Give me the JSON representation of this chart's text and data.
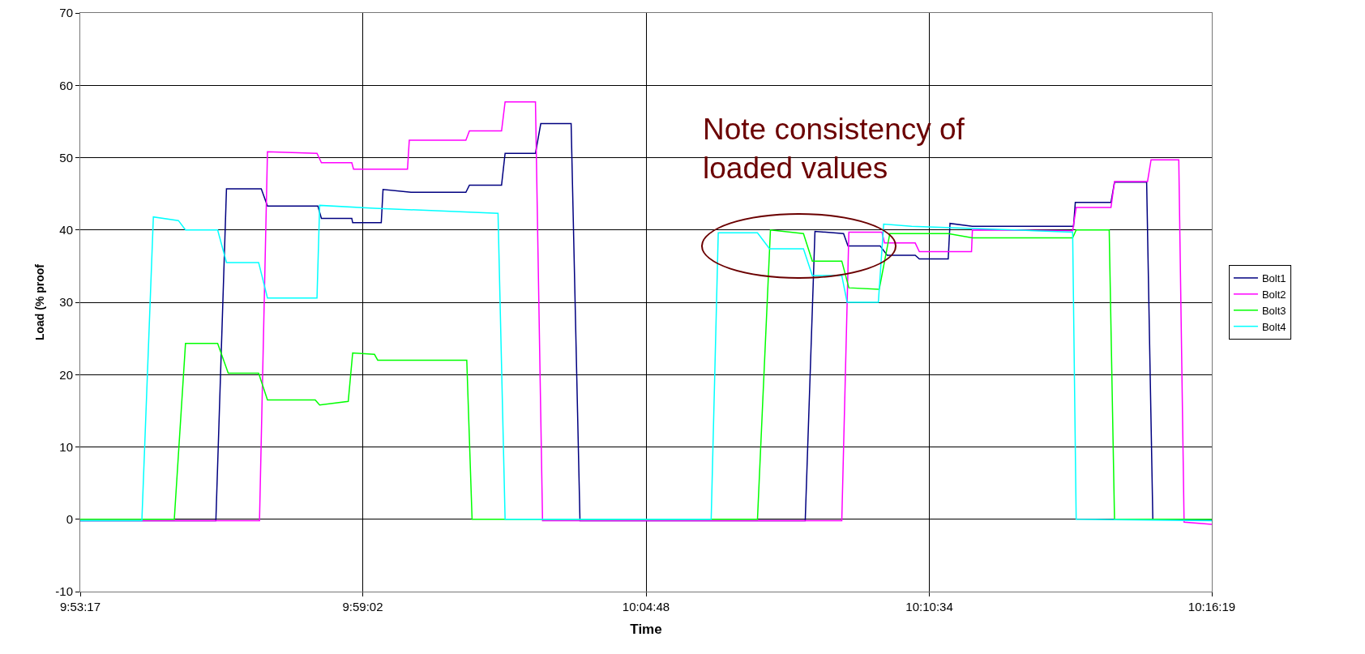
{
  "chart_data": {
    "type": "line",
    "xlabel": "Time",
    "ylabel": "Load (% proof",
    "annotations": [
      "Note consistency of loaded values"
    ],
    "xlim": [
      9.8881,
      10.2719
    ],
    "xticks": [
      {
        "value": 9.8881,
        "label": "9:53:17"
      },
      {
        "value": 9.9839,
        "label": "9:59:02"
      },
      {
        "value": 10.08,
        "label": "10:04:48"
      },
      {
        "value": 10.1761,
        "label": "10:10:34"
      },
      {
        "value": 10.2719,
        "label": "10:16:19"
      }
    ],
    "ylim": [
      -10,
      70
    ],
    "yticks": [
      -10,
      0,
      10,
      20,
      30,
      40,
      50,
      60,
      70
    ],
    "grid": true,
    "legend": "right",
    "marker": "none",
    "line_style": "solid",
    "series": [
      {
        "name": "Bolt1",
        "color": "#000080",
        "x": [
          9.8881,
          9.9341,
          9.9377,
          9.9495,
          9.9516,
          9.9687,
          9.9699,
          9.9802,
          9.9805,
          9.9902,
          9.9908,
          10.0003,
          10.0189,
          10.0201,
          10.031,
          10.0322,
          10.0425,
          10.0443,
          10.0546,
          10.0576,
          10.134,
          10.1373,
          10.147,
          10.1485,
          10.1594,
          10.1618,
          10.1713,
          10.1727,
          10.1825,
          10.1831,
          10.1907,
          10.225,
          10.2256,
          10.2377,
          10.2389,
          10.2498,
          10.2519,
          10.2719
        ],
        "values": [
          -0.2,
          -0.2,
          45.7,
          45.7,
          43.3,
          43.3,
          41.6,
          41.6,
          41,
          41,
          45.6,
          45.2,
          45.2,
          46.2,
          46.2,
          50.6,
          50.6,
          54.7,
          54.7,
          -0.2,
          -0.2,
          39.8,
          39.5,
          37.8,
          37.8,
          36.5,
          36.5,
          36,
          36,
          40.9,
          40.5,
          40.5,
          43.8,
          43.8,
          46.6,
          46.6,
          0,
          -0.1
        ]
      },
      {
        "name": "Bolt2",
        "color": "#ff00ff",
        "x": [
          9.8881,
          9.9489,
          9.9516,
          9.9684,
          9.9699,
          9.9802,
          9.9808,
          9.9991,
          9.9997,
          10.0189,
          10.0201,
          10.031,
          10.0322,
          10.0425,
          10.0449,
          10.1464,
          10.1488,
          10.16,
          10.1609,
          10.1713,
          10.1727,
          10.1904,
          10.1907,
          10.2247,
          10.2259,
          10.2377,
          10.2389,
          10.2501,
          10.2513,
          10.2607,
          10.2625,
          10.2719
        ],
        "values": [
          -0.2,
          -0.2,
          50.8,
          50.6,
          49.3,
          49.3,
          48.4,
          48.4,
          52.4,
          52.4,
          53.7,
          53.7,
          57.7,
          57.7,
          -0.2,
          -0.2,
          39.7,
          39.7,
          38.2,
          38.2,
          37,
          37,
          40,
          39.9,
          43.1,
          43.1,
          46.7,
          46.7,
          49.7,
          49.7,
          -0.4,
          -0.7
        ]
      },
      {
        "name": "Bolt3",
        "color": "#00ff00",
        "x": [
          9.8881,
          9.92,
          9.9238,
          9.9347,
          9.9383,
          9.9486,
          9.9516,
          9.9678,
          9.9693,
          9.979,
          9.9805,
          9.9879,
          9.989,
          10.0192,
          10.021,
          10.1178,
          10.1222,
          10.1334,
          10.1364,
          10.1464,
          10.1488,
          10.1591,
          10.1627,
          10.1825,
          10.1907,
          10.2247,
          10.2259,
          10.2371,
          10.2389,
          10.2719
        ],
        "values": [
          0,
          0,
          24.3,
          24.3,
          20.2,
          20.2,
          16.5,
          16.5,
          15.8,
          16.3,
          23,
          22.8,
          22,
          22,
          0,
          0,
          40,
          39.5,
          35.7,
          35.7,
          32,
          31.8,
          39.5,
          39.5,
          38.9,
          38.9,
          40,
          40,
          0,
          0
        ]
      },
      {
        "name": "Bolt4",
        "color": "#00ffff",
        "x": [
          9.8881,
          9.909,
          9.9129,
          9.9214,
          9.9238,
          9.9347,
          9.9377,
          9.9486,
          9.9516,
          9.9684,
          9.9693,
          9.9879,
          10.0298,
          10.0322,
          10.1021,
          10.1045,
          10.1178,
          10.1219,
          10.1334,
          10.1364,
          10.1464,
          10.1482,
          10.1588,
          10.1606,
          10.1701,
          10.2247,
          10.2259,
          10.2719
        ],
        "values": [
          -0.2,
          -0.2,
          41.8,
          41.3,
          40,
          40,
          35.5,
          35.5,
          30.6,
          30.6,
          43.4,
          43,
          42.3,
          0,
          0,
          39.6,
          39.6,
          37.4,
          37.4,
          33.7,
          33.7,
          30,
          30,
          40.8,
          40.5,
          39.7,
          0,
          -0.2
        ]
      }
    ]
  }
}
